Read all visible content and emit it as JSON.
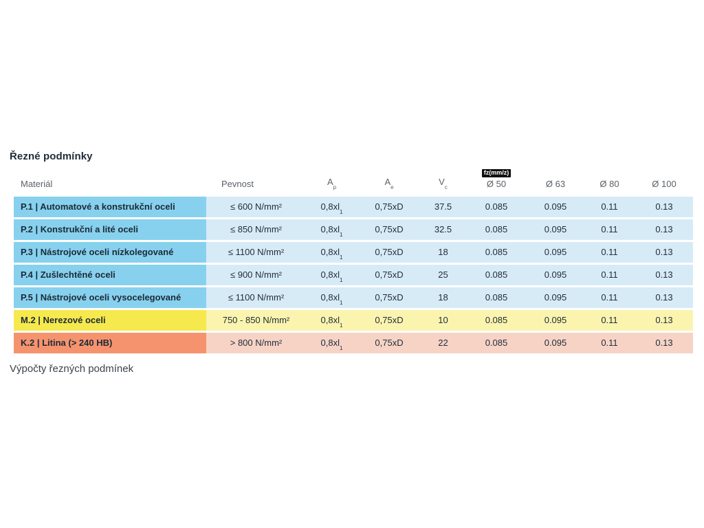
{
  "page": {
    "title": "Řezné podmínky",
    "footer": "Výpočty řezných podmínek"
  },
  "table": {
    "fz_badge": "fz(mm/z)",
    "headers": {
      "material": "Materiál",
      "pevnost": "Pevnost",
      "ap_base": "A",
      "ap_sub": "p",
      "ae_base": "A",
      "ae_sub": "e",
      "vc_base": "V",
      "vc_sub": "c",
      "d50": "Ø 50",
      "d63": "Ø 63",
      "d80": "Ø 80",
      "d100": "Ø 100"
    },
    "rows": [
      {
        "material": "P.1 | Automatové a konstrukční oceli",
        "pevnost": "≤ 600 N/mm²",
        "ap": "0,8xl",
        "ap_sub": "1",
        "ae": "0,75xD",
        "vc": "37.5",
        "d50": "0.085",
        "d63": "0.095",
        "d80": "0.11",
        "d100": "0.13",
        "theme": "blue"
      },
      {
        "material": "P.2 | Konstrukční a lité oceli",
        "pevnost": "≤ 850 N/mm²",
        "ap": "0,8xl",
        "ap_sub": "1",
        "ae": "0,75xD",
        "vc": "32.5",
        "d50": "0.085",
        "d63": "0.095",
        "d80": "0.11",
        "d100": "0.13",
        "theme": "blue"
      },
      {
        "material": "P.3 | Nástrojové oceli nízkolegované",
        "pevnost": "≤ 1100 N/mm²",
        "ap": "0,8xl",
        "ap_sub": "1",
        "ae": "0,75xD",
        "vc": "18",
        "d50": "0.085",
        "d63": "0.095",
        "d80": "0.11",
        "d100": "0.13",
        "theme": "blue"
      },
      {
        "material": "P.4 | Zušlechtěné oceli",
        "pevnost": "≤ 900 N/mm²",
        "ap": "0,8xl",
        "ap_sub": "1",
        "ae": "0,75xD",
        "vc": "25",
        "d50": "0.085",
        "d63": "0.095",
        "d80": "0.11",
        "d100": "0.13",
        "theme": "blue"
      },
      {
        "material": "P.5 | Nástrojové oceli vysocelegované",
        "pevnost": "≤ 1100 N/mm²",
        "ap": "0,8xl",
        "ap_sub": "1",
        "ae": "0,75xD",
        "vc": "18",
        "d50": "0.085",
        "d63": "0.095",
        "d80": "0.11",
        "d100": "0.13",
        "theme": "blue"
      },
      {
        "material": "M.2 | Nerezové oceli",
        "pevnost": "750 - 850 N/mm²",
        "ap": "0,8xl",
        "ap_sub": "1",
        "ae": "0,75xD",
        "vc": "10",
        "d50": "0.085",
        "d63": "0.095",
        "d80": "0.11",
        "d100": "0.13",
        "theme": "yellow"
      },
      {
        "material": "K.2 | Litina (> 240 HB)",
        "pevnost": "> 800 N/mm²",
        "ap": "0,8xl",
        "ap_sub": "1",
        "ae": "0,75xD",
        "vc": "22",
        "d50": "0.085",
        "d63": "0.095",
        "d80": "0.11",
        "d100": "0.13",
        "theme": "red"
      }
    ]
  },
  "colors": {
    "steel_label_bg": "#87d1ee",
    "steel_value_bg": "#d7ebf7",
    "stainless_label_bg": "#f6e94d",
    "stainless_value_bg": "#fbf4ae",
    "castiron_label_bg": "#f5936e",
    "castiron_value_bg": "#f7d3c6",
    "badge_bg": "#101010",
    "badge_text": "#ffffff",
    "header_text": "#5b6167",
    "body_text": "#202e3a"
  }
}
